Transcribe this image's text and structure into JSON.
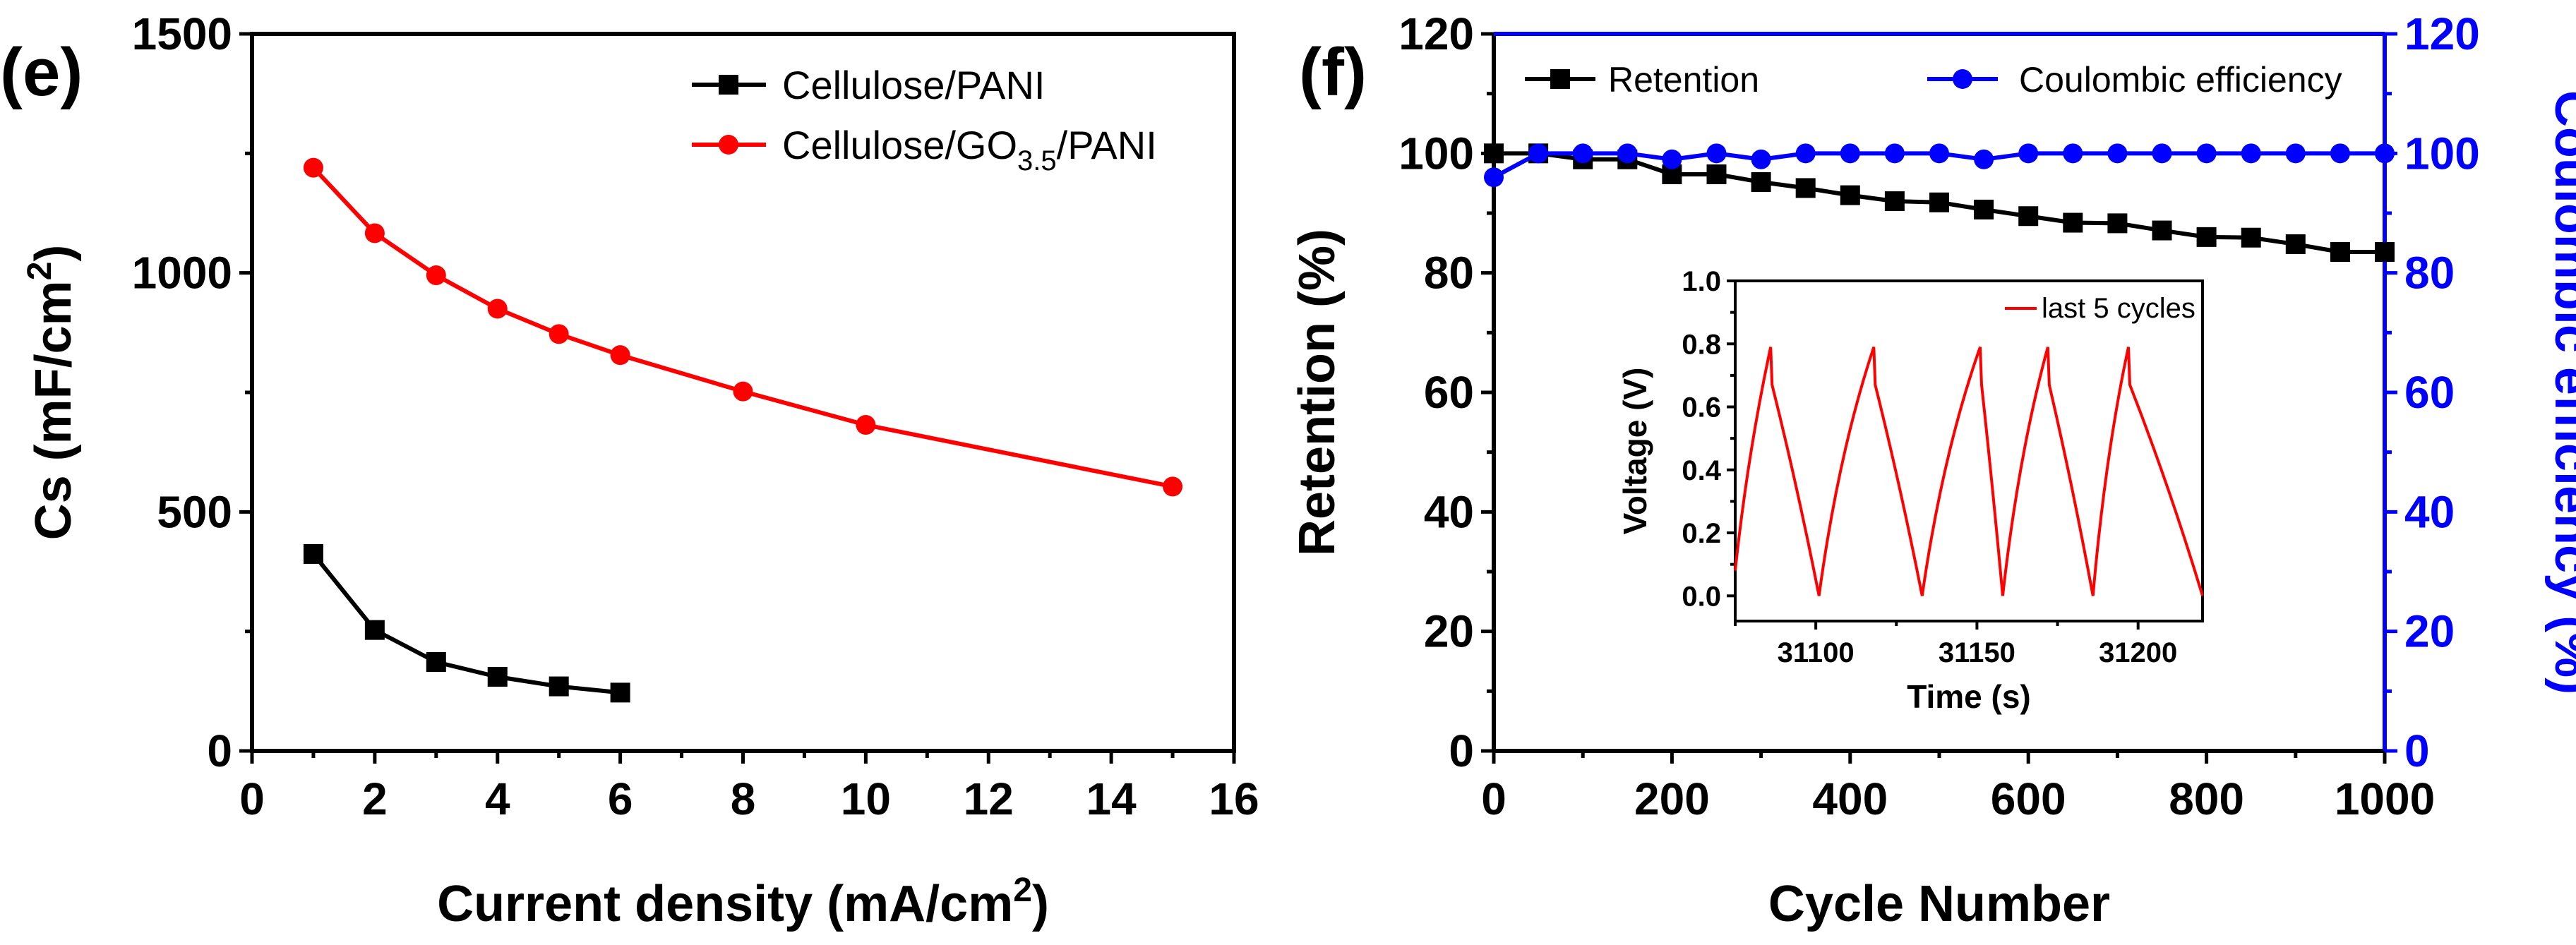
{
  "chart_data": [
    {
      "panel_label": "(e)",
      "type": "line",
      "xlabel": "Current density (mA/cm",
      "xlabel_sup": "2",
      "xlabel_end": ")",
      "ylabel": "Cs (mF/cm",
      "ylabel_sup": "2",
      "ylabel_end": ")",
      "xlim": [
        0,
        16
      ],
      "ylim": [
        0,
        1500
      ],
      "xticks": [
        "0",
        "2",
        "4",
        "6",
        "8",
        "10",
        "12",
        "14",
        "16"
      ],
      "yticks": [
        "0",
        "500",
        "1000",
        "1500"
      ],
      "legend_position": "top-right",
      "series": [
        {
          "name": "Cellulose/PANI",
          "color": "#000000",
          "marker": "square",
          "x": [
            1,
            2,
            3,
            4,
            5,
            6
          ],
          "y": [
            412,
            253,
            186,
            155,
            135,
            122
          ]
        },
        {
          "name": "Cellulose/GO",
          "name_sub": "3.5",
          "name_end": "/PANI",
          "color": "#ff0000",
          "marker": "circle",
          "x": [
            1,
            2,
            3,
            4,
            5,
            6,
            8,
            10,
            15
          ],
          "y": [
            1220,
            1083,
            995,
            925,
            872,
            828,
            752,
            682,
            553
          ]
        }
      ]
    },
    {
      "panel_label": "(f)",
      "type": "line",
      "xlabel": "Cycle Number",
      "ylabel": "Retention (%)",
      "y2label": "Coulombic efficiency (%)",
      "xlim": [
        0,
        1000
      ],
      "ylim": [
        0,
        120
      ],
      "y2lim": [
        0,
        120
      ],
      "xticks": [
        "0",
        "200",
        "400",
        "600",
        "800",
        "1000"
      ],
      "yticks": [
        "0",
        "20",
        "40",
        "60",
        "80",
        "100",
        "120"
      ],
      "y2ticks": [
        "0",
        "20",
        "40",
        "60",
        "80",
        "100",
        "120"
      ],
      "legend_position": "top",
      "series": [
        {
          "name": "Retention",
          "axis": "left",
          "color": "#000000",
          "marker": "square",
          "x": [
            0,
            50,
            100,
            150,
            200,
            250,
            300,
            350,
            400,
            450,
            500,
            550,
            600,
            650,
            700,
            750,
            800,
            850,
            900,
            950,
            1000
          ],
          "y": [
            100,
            100,
            99,
            99,
            96.5,
            96.5,
            95.2,
            94.2,
            93,
            92,
            91.8,
            90.6,
            89.5,
            88.4,
            88.3,
            87.1,
            86,
            85.9,
            84.8,
            83.5,
            83.5
          ]
        },
        {
          "name": "Coulombic efficiency",
          "axis": "right",
          "color": "#0000ff",
          "marker": "circle",
          "x": [
            0,
            50,
            100,
            150,
            200,
            250,
            300,
            350,
            400,
            450,
            500,
            550,
            600,
            650,
            700,
            750,
            800,
            850,
            900,
            950,
            1000
          ],
          "y": [
            96,
            100,
            100,
            100,
            99,
            100,
            99,
            100,
            100,
            100,
            100,
            99,
            100,
            100,
            100,
            100,
            100,
            100,
            100,
            100,
            100
          ]
        }
      ],
      "inset": {
        "type": "line",
        "xlabel": "Time (s)",
        "ylabel": "Voltage (V)",
        "xlim": [
          31075,
          31220
        ],
        "ylim": [
          -0.08,
          1.0
        ],
        "xticks": [
          "31100",
          "31150",
          "31200"
        ],
        "yticks": [
          "0.0",
          "0.2",
          "0.4",
          "0.6",
          "0.8",
          "1.0"
        ],
        "legend": "last 5 cycles",
        "color": "#ff0000",
        "cycles_start": [
          31075,
          31123,
          31171
        ],
        "cycles": [
          {
            "start": 31075,
            "peak": 31086,
            "end": 31101
          },
          {
            "start": 31101,
            "peak": 31118,
            "end": 31133
          },
          {
            "start": 31133,
            "peak": 31151,
            "end": 31158
          },
          {
            "start": 31158,
            "peak": 31172,
            "end": 31186
          },
          {
            "start": 31186,
            "peak": 31197,
            "end": 31220
          }
        ],
        "vmax": 0.79
      }
    }
  ]
}
